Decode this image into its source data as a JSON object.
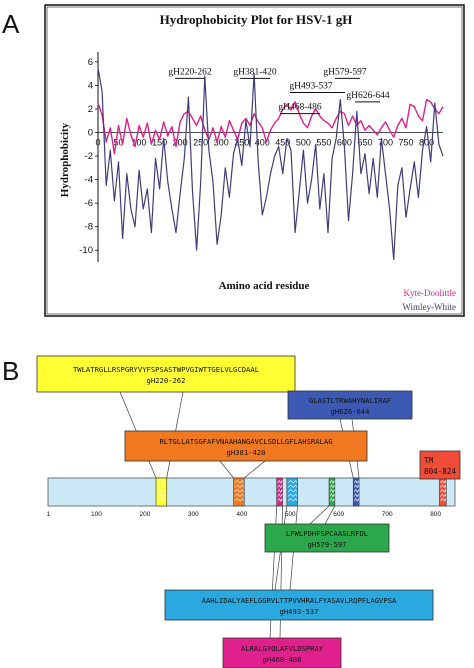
{
  "panels": {
    "a": "A",
    "b": "B"
  },
  "chart_data": [
    {
      "type": "line",
      "title": "Hydrophobicity Plot for HSV-1 gH",
      "xlabel": "Amino acid residue",
      "ylabel": "Hydrophobicity",
      "xlim": [
        0,
        840
      ],
      "ylim": [
        -11,
        6.5
      ],
      "x_ticks": [
        "0",
        "50",
        "100",
        "150",
        "200",
        "250",
        "300",
        "350",
        "400",
        "450",
        "500",
        "550",
        "600",
        "650",
        "700",
        "750",
        "800"
      ],
      "y_ticks": [
        "6",
        "4",
        "2",
        "0",
        "-2",
        "-4",
        "-6",
        "-8",
        "-10"
      ],
      "series": [
        {
          "name": "Kyte-Doolittle",
          "color": "#e0208c",
          "x": [
            0,
            10,
            20,
            30,
            40,
            50,
            60,
            70,
            80,
            90,
            100,
            110,
            120,
            130,
            140,
            150,
            160,
            170,
            180,
            190,
            200,
            210,
            220,
            230,
            240,
            250,
            260,
            270,
            280,
            290,
            300,
            310,
            320,
            330,
            340,
            350,
            360,
            370,
            380,
            390,
            400,
            410,
            420,
            430,
            440,
            450,
            460,
            470,
            480,
            490,
            500,
            510,
            520,
            530,
            540,
            550,
            560,
            570,
            580,
            590,
            600,
            610,
            620,
            630,
            640,
            650,
            660,
            670,
            680,
            690,
            700,
            710,
            720,
            730,
            740,
            750,
            760,
            770,
            780,
            790,
            800,
            810,
            820,
            830,
            840
          ],
          "values": [
            2.5,
            1.5,
            -0.8,
            0.4,
            -1.8,
            0.6,
            -1.0,
            1.2,
            -0.2,
            -1.2,
            0.6,
            -0.4,
            0.8,
            -1.0,
            0.2,
            -0.6,
            0.9,
            -0.3,
            0.5,
            -1.2,
            0.9,
            1.6,
            1.8,
            1.2,
            0.6,
            1.4,
            0.2,
            -0.6,
            0.4,
            -0.8,
            0.5,
            -0.4,
            1.0,
            0.2,
            -0.6,
            0.8,
            1.2,
            0.6,
            1.6,
            0.9,
            0.4,
            -0.8,
            0.2,
            0.8,
            1.2,
            2.0,
            2.4,
            1.9,
            2.6,
            1.6,
            0.8,
            0.4,
            1.4,
            2.0,
            1.4,
            1.0,
            0.8,
            0.4,
            1.2,
            1.8,
            1.6,
            0.6,
            1.4,
            0.6,
            1.0,
            0.2,
            0.6,
            0.2,
            -0.2,
            0.4,
            0.9,
            0.2,
            -0.4,
            0.6,
            1.2,
            0.4,
            2.4,
            2.2,
            1.4,
            1.0,
            2.8,
            2.6,
            2.0,
            1.6,
            2.2
          ]
        },
        {
          "name": "Wimley-White",
          "color": "#403d7a",
          "x": [
            0,
            10,
            20,
            30,
            40,
            50,
            60,
            70,
            80,
            90,
            100,
            110,
            120,
            130,
            140,
            150,
            160,
            170,
            180,
            190,
            200,
            210,
            220,
            230,
            240,
            250,
            260,
            270,
            280,
            290,
            300,
            310,
            320,
            330,
            340,
            350,
            360,
            370,
            380,
            390,
            400,
            410,
            420,
            430,
            440,
            450,
            460,
            470,
            480,
            490,
            500,
            510,
            520,
            530,
            540,
            550,
            560,
            570,
            580,
            590,
            600,
            610,
            620,
            630,
            640,
            650,
            660,
            670,
            680,
            690,
            700,
            710,
            720,
            730,
            740,
            750,
            760,
            770,
            780,
            790,
            800,
            810,
            820,
            830,
            840
          ],
          "values": [
            5.5,
            3.5,
            -4.5,
            -1.5,
            -5.8,
            -2.5,
            -9.0,
            -3.5,
            -6.5,
            -8.0,
            -3.2,
            -6.5,
            -4.8,
            -8.5,
            -2.2,
            -4.8,
            -0.5,
            -4.2,
            -6.5,
            -8.5,
            -5.2,
            -2.2,
            3.0,
            -5.0,
            -10.0,
            -4.2,
            4.8,
            -1.5,
            -4.2,
            -9.5,
            -7.0,
            -3.0,
            -5.5,
            -1.8,
            -0.5,
            -2.8,
            1.0,
            -1.2,
            5.0,
            -2.5,
            -7.0,
            -5.5,
            -3.5,
            -2.0,
            -1.2,
            -3.5,
            -0.5,
            -1.5,
            -8.5,
            -5.0,
            -1.5,
            -6.0,
            -4.0,
            -1.0,
            -6.5,
            -3.5,
            -8.5,
            -2.2,
            -0.5,
            2.8,
            -1.2,
            -7.5,
            -3.5,
            1.8,
            -3.5,
            -1.8,
            -5.2,
            -2.2,
            -5.5,
            -0.5,
            -3.5,
            -6.5,
            -10.8,
            -4.5,
            -3.0,
            -7.2,
            -4.8,
            -2.5,
            -5.5,
            -1.5,
            0.5,
            -2.5,
            2.5,
            -1.0,
            -2.0
          ]
        }
      ],
      "annotations": [
        "gH220-262",
        "gH381-420",
        "gH493-537",
        "gH579-597",
        "gH468-486",
        "gH626-644"
      ],
      "legend_position": "bottom-right",
      "grid": false
    }
  ],
  "domain_map": {
    "length": 840,
    "scale_labels": [
      "1",
      "100",
      "200",
      "300",
      "400",
      "500",
      "600",
      "700",
      "800"
    ],
    "segments": [
      {
        "id": "gH220-262",
        "sequence": "TWLATRGLLRSPGRYVYFSPSASTWPVGIWTTGELVLGCDAAL",
        "label": "gH220-262",
        "color": "#ffff33"
      },
      {
        "id": "gH381-420",
        "sequence": "RLTGLLATSGFAFVNAAHANGAVCLSDLLGFLAHSRALAG",
        "label": "gH381-420",
        "color": "#f07820"
      },
      {
        "id": "gH626-644",
        "sequence": "GLASTLTRWAHYNALIRAF",
        "label": "gH626-644",
        "color": "#3c5ab4"
      },
      {
        "id": "tm",
        "sequence": "TM",
        "label": "804-824",
        "color": "#f04c38"
      },
      {
        "id": "gH579-597",
        "sequence": "LFWLPDHFSPCAASLRFDL",
        "label": "gH579-597",
        "color": "#2ca84c"
      },
      {
        "id": "gH493-537",
        "sequence": "AAHLIDALYAEFLGGRVLTTPVVHRALFYASAVLRQPFLAGVPSA",
        "label": "gH493-537",
        "color": "#2aa8e0"
      },
      {
        "id": "gH468-486",
        "sequence": "ALRALGYQLAFVLDSPRAY",
        "label": "gH468-486",
        "color": "#e0208c"
      }
    ]
  }
}
